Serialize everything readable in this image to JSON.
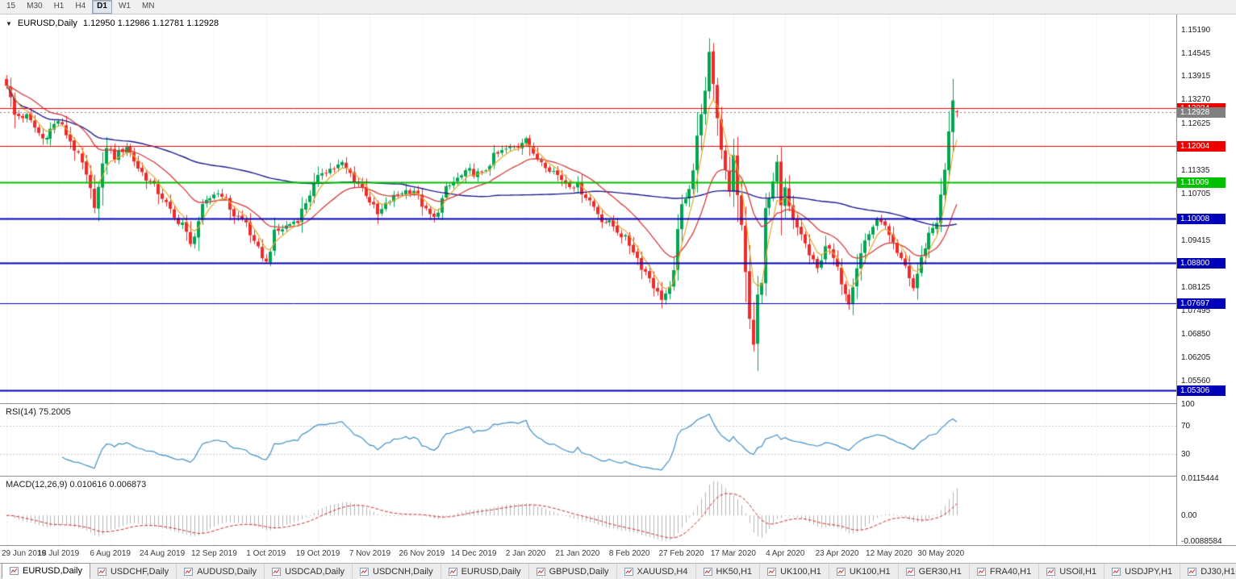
{
  "toolbar": {
    "timeframes": [
      {
        "label": "15",
        "active": false
      },
      {
        "label": "M30",
        "active": false
      },
      {
        "label": "H1",
        "active": false
      },
      {
        "label": "H4",
        "active": false
      },
      {
        "label": "D1",
        "active": true
      },
      {
        "label": "W1",
        "active": false
      },
      {
        "label": "MN",
        "active": false
      }
    ]
  },
  "chart": {
    "dropdown_icon": "▼",
    "symbol_period": "EURUSD,Daily",
    "ohlc_text": "1.12950 1.12986 1.12781 1.12928"
  },
  "panes": {
    "rsi_label": "RSI(14) 75.2005",
    "macd_label": "MACD(12,26,9) 0.010616 0.006873"
  },
  "price_axis": {
    "min": 1.0495,
    "max": 1.156,
    "labels": [
      "1.15190",
      "1.14545",
      "1.13915",
      "1.13270",
      "1.12625",
      "1.11980",
      "1.11335",
      "1.10705",
      "1.10060",
      "1.09415",
      "1.08770",
      "1.08125",
      "1.07495",
      "1.06850",
      "1.06205",
      "1.05560"
    ]
  },
  "levels": [
    {
      "value": 1.13034,
      "label": "1.13034",
      "color": "#ee0000",
      "width": 1
    },
    {
      "value": 1.12004,
      "label": "1.12004",
      "color": "#ee0000",
      "width": 1
    },
    {
      "value": 1.11009,
      "label": "1.11009",
      "color": "#00c000",
      "width": 2
    },
    {
      "value": 1.10008,
      "label": "1.10008",
      "color": "#0000b8",
      "width": 2
    },
    {
      "value": 1.088,
      "label": "1.08800",
      "color": "#0000b8",
      "width": 2
    },
    {
      "value": 1.07697,
      "label": "1.07697",
      "color": "#0000b8",
      "width": 1
    },
    {
      "value": 1.05306,
      "label": "1.05306",
      "color": "#0000b8",
      "width": 2
    }
  ],
  "current_price": {
    "value": 1.12928,
    "label": "1.12928",
    "color": "#808080"
  },
  "colors": {
    "bull": "#00a651",
    "bear": "#ee2b2b",
    "ma_fast": "#e6a62c",
    "ma_mid": "#d23b3b",
    "ma_slow": "#1c1c8f",
    "rsi": "#3f8fc5",
    "rsi_level": "#c8c8c8",
    "macd_hist": "#b4b4b4",
    "macd_signal": "#d03030",
    "grid": "#dcdcdc"
  },
  "chart_data": {
    "type": "candlestick",
    "symbol": "EURUSD",
    "timeframe": "Daily",
    "bars": 239,
    "ylim": [
      1.0495,
      1.156
    ],
    "last_ohlc": {
      "open": 1.1295,
      "high": 1.12986,
      "low": 1.12781,
      "close": 1.12928
    },
    "close_anchors": [
      [
        0,
        1.1372
      ],
      [
        2,
        1.1284
      ],
      [
        5,
        1.128
      ],
      [
        9,
        1.122
      ],
      [
        13,
        1.127
      ],
      [
        16,
        1.1214
      ],
      [
        19,
        1.115
      ],
      [
        22,
        1.104
      ],
      [
        23,
        1.1085
      ],
      [
        25,
        1.12
      ],
      [
        27,
        1.117
      ],
      [
        30,
        1.12
      ],
      [
        33,
        1.114
      ],
      [
        36,
        1.11
      ],
      [
        39,
        1.106
      ],
      [
        42,
        1.1
      ],
      [
        44,
        1.099
      ],
      [
        46,
        1.0926
      ],
      [
        49,
        1.103
      ],
      [
        52,
        1.107
      ],
      [
        54,
        1.107
      ],
      [
        57,
        1.101
      ],
      [
        60,
        1.099
      ],
      [
        62,
        1.093
      ],
      [
        64,
        1.09
      ],
      [
        65,
        1.0879
      ],
      [
        67,
        1.096
      ],
      [
        70,
        1.098
      ],
      [
        73,
        1.1
      ],
      [
        76,
        1.107
      ],
      [
        79,
        1.113
      ],
      [
        82,
        1.114
      ],
      [
        84,
        1.115
      ],
      [
        87,
        1.111
      ],
      [
        90,
        1.107
      ],
      [
        93,
        1.101
      ],
      [
        96,
        1.105
      ],
      [
        99,
        1.1075
      ],
      [
        102,
        1.108
      ],
      [
        105,
        1.102
      ],
      [
        107,
        1.1
      ],
      [
        110,
        1.108
      ],
      [
        113,
        1.111
      ],
      [
        116,
        1.113
      ],
      [
        119,
        1.112
      ],
      [
        122,
        1.117
      ],
      [
        125,
        1.119
      ],
      [
        128,
        1.12
      ],
      [
        130,
        1.123
      ],
      [
        132,
        1.117
      ],
      [
        134,
        1.116
      ],
      [
        137,
        1.113
      ],
      [
        140,
        1.11
      ],
      [
        143,
        1.109
      ],
      [
        146,
        1.105
      ],
      [
        149,
        1.1
      ],
      [
        152,
        1.098
      ],
      [
        155,
        1.0945
      ],
      [
        157,
        1.0915
      ],
      [
        159,
        1.087
      ],
      [
        161,
        1.084
      ],
      [
        163,
        1.0795
      ],
      [
        164,
        1.0785
      ],
      [
        166,
        1.0805
      ],
      [
        167,
        1.085
      ],
      [
        168,
        1.098
      ],
      [
        169,
        1.103
      ],
      [
        170,
        1.105
      ],
      [
        171,
        1.109
      ],
      [
        172,
        1.114
      ],
      [
        173,
        1.123
      ],
      [
        174,
        1.128
      ],
      [
        175,
        1.136
      ],
      [
        176,
        1.145
      ],
      [
        177,
        1.136
      ],
      [
        178,
        1.128
      ],
      [
        179,
        1.119
      ],
      [
        180,
        1.114
      ],
      [
        181,
        1.108
      ],
      [
        182,
        1.118
      ],
      [
        183,
        1.106
      ],
      [
        184,
        1.098
      ],
      [
        185,
        1.086
      ],
      [
        186,
        1.072
      ],
      [
        187,
        1.0655
      ],
      [
        188,
        1.079
      ],
      [
        189,
        1.082
      ],
      [
        190,
        1.104
      ],
      [
        191,
        1.105
      ],
      [
        192,
        1.11
      ],
      [
        193,
        1.1147
      ],
      [
        194,
        1.103
      ],
      [
        195,
        1.108
      ],
      [
        196,
        1.103
      ],
      [
        197,
        1.099
      ],
      [
        199,
        1.096
      ],
      [
        201,
        1.09
      ],
      [
        203,
        1.086
      ],
      [
        205,
        1.093
      ],
      [
        207,
        1.089
      ],
      [
        209,
        1.083
      ],
      [
        211,
        1.0775
      ],
      [
        213,
        1.087
      ],
      [
        215,
        1.094
      ],
      [
        217,
        1.098
      ],
      [
        219,
        1.1
      ],
      [
        221,
        1.095
      ],
      [
        223,
        1.09
      ],
      [
        225,
        1.087
      ],
      [
        227,
        1.081
      ],
      [
        229,
        1.089
      ],
      [
        231,
        1.096
      ],
      [
        233,
        1.0995
      ],
      [
        234,
        1.106
      ],
      [
        235,
        1.1134
      ],
      [
        236,
        1.1234
      ],
      [
        237,
        1.133
      ],
      [
        238,
        1.12928
      ]
    ],
    "ohlc_overrides": {
      "176": {
        "h": 1.1495
      },
      "187": {
        "l": 1.0636
      },
      "237": {
        "h": 1.1384
      },
      "238": {
        "o": 1.1295,
        "h": 1.12986,
        "l": 1.12781,
        "c": 1.12928
      }
    },
    "moving_averages": [
      {
        "period": 5,
        "type": "ema",
        "color_key": "ma_fast"
      },
      {
        "period": 20,
        "type": "ema",
        "color_key": "ma_mid"
      },
      {
        "period": 100,
        "type": "sma",
        "color_key": "ma_slow"
      }
    ],
    "rsi": {
      "period": 14,
      "current": 75.2005,
      "levels": [
        70,
        30
      ],
      "axis_labels": [
        "100",
        "70",
        "30"
      ]
    },
    "macd": {
      "fast": 12,
      "slow": 26,
      "signal": 9,
      "current_values": [
        0.010616,
        0.006873
      ],
      "range": [
        -0.0088584,
        0.0115444
      ],
      "axis_labels": [
        "0.0115444",
        "0.00",
        "-0.0088584"
      ]
    },
    "date_ticks": {
      "every_bars": 13,
      "labels": [
        "29 Jun 2019",
        "18 Jul 2019",
        "6 Aug 2019",
        "24 Aug 2019",
        "12 Sep 2019",
        "1 Oct 2019",
        "19 Oct 2019",
        "7 Nov 2019",
        "26 Nov 2019",
        "14 Dec 2019",
        "2 Jan 2020",
        "21 Jan 2020",
        "8 Feb 2020",
        "27 Feb 2020",
        "17 Mar 2020",
        "4 Apr 2020",
        "23 Apr 2020",
        "12 May 2020",
        "30 May 2020"
      ]
    }
  },
  "tabs": [
    {
      "label": "EURUSD,Daily",
      "active": true
    },
    {
      "label": "USDCHF,Daily",
      "active": false
    },
    {
      "label": "AUDUSD,Daily",
      "active": false
    },
    {
      "label": "USDCAD,Daily",
      "active": false
    },
    {
      "label": "USDCNH,Daily",
      "active": false
    },
    {
      "label": "EURUSD,Daily",
      "active": false
    },
    {
      "label": "GBPUSD,Daily",
      "active": false
    },
    {
      "label": "XAUUSD,H4",
      "active": false
    },
    {
      "label": "HK50,H1",
      "active": false
    },
    {
      "label": "UK100,H1",
      "active": false
    },
    {
      "label": "UK100,H1",
      "active": false
    },
    {
      "label": "GER30,H1",
      "active": false
    },
    {
      "label": "FRA40,H1",
      "active": false
    },
    {
      "label": "USOil,H1",
      "active": false
    },
    {
      "label": "USDJPY,H1",
      "active": false
    },
    {
      "label": "DJ30,H1",
      "active": false
    }
  ]
}
